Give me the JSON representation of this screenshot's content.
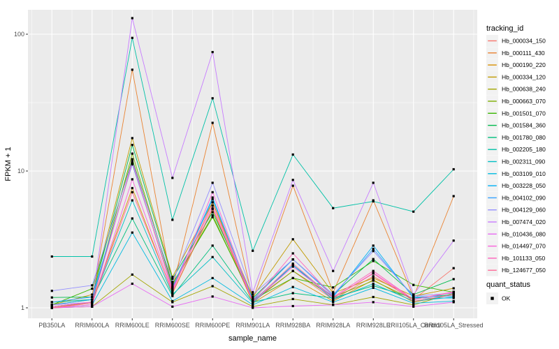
{
  "chart_data": {
    "type": "line",
    "title": "",
    "xlabel": "sample_name",
    "ylabel": "FPKM + 1",
    "y_scale": "log10",
    "y_tick_labels": [
      "1",
      "10",
      "100"
    ],
    "y_tick_values": [
      1,
      10,
      100
    ],
    "grid": "on",
    "legend_position": "right",
    "legend_color_title": "tracking_id",
    "legend_shape_title": "quant_status",
    "legend_shape_label": "OK",
    "categories": [
      "PB350LA",
      "RRIM600LA",
      "RRIM600LE",
      "RRIM600SE",
      "RRIM600PE",
      "RRIM901LA",
      "RRIM928BA",
      "RRIM928LA",
      "RRIM928LE",
      "RRII105LA_Control",
      "RRII105LA_Stressed"
    ],
    "series": [
      {
        "name": "Hb_000034_150",
        "color": "#F8766D",
        "values": [
          1.0,
          1.1,
          11.6,
          1.35,
          5.9,
          1.1,
          1.86,
          1.15,
          1.7,
          1.15,
          1.95
        ]
      },
      {
        "name": "Hb_000111_430",
        "color": "#EA8331",
        "values": [
          1.05,
          1.15,
          55.0,
          1.39,
          22.5,
          1.15,
          7.8,
          1.3,
          6.1,
          1.2,
          6.55
        ]
      },
      {
        "name": "Hb_000190_220",
        "color": "#D89000",
        "values": [
          1.0,
          1.1,
          7.5,
          1.28,
          5.25,
          1.08,
          1.65,
          1.12,
          1.6,
          1.1,
          1.25
        ]
      },
      {
        "name": "Hb_000334_120",
        "color": "#C09B00",
        "values": [
          1.05,
          1.25,
          17.4,
          1.68,
          5.9,
          1.2,
          3.17,
          1.28,
          1.65,
          1.22,
          1.39
        ]
      },
      {
        "name": "Hb_000638_240",
        "color": "#A3A500",
        "values": [
          1.0,
          1.02,
          1.75,
          1.1,
          1.44,
          1.02,
          1.16,
          1.05,
          1.2,
          1.05,
          1.28
        ]
      },
      {
        "name": "Hb_000663_070",
        "color": "#7CAE00",
        "values": [
          1.02,
          1.1,
          13.4,
          1.45,
          4.75,
          1.12,
          1.86,
          1.2,
          1.58,
          1.15,
          1.3
        ]
      },
      {
        "name": "Hb_001501_070",
        "color": "#39B600",
        "values": [
          1.05,
          1.38,
          12.2,
          1.5,
          4.6,
          1.15,
          1.65,
          1.41,
          2.2,
          1.47,
          1.3
        ]
      },
      {
        "name": "Hb_001584_360",
        "color": "#00BB4E",
        "values": [
          1.19,
          1.2,
          15.5,
          1.63,
          5.0,
          1.18,
          2.26,
          1.25,
          2.27,
          1.25,
          1.62
        ]
      },
      {
        "name": "Hb_001780_080",
        "color": "#00BF7D",
        "values": [
          1.1,
          1.15,
          4.5,
          1.22,
          2.85,
          1.1,
          1.28,
          1.18,
          1.45,
          1.18,
          1.25
        ]
      },
      {
        "name": "Hb_002205_180",
        "color": "#00C1A7",
        "values": [
          2.37,
          2.37,
          94.0,
          4.4,
          34.0,
          2.61,
          13.2,
          5.35,
          6.0,
          5.05,
          10.3
        ]
      },
      {
        "name": "Hb_002311_090",
        "color": "#00BFC4",
        "values": [
          1.02,
          1.1,
          6.1,
          1.25,
          2.35,
          1.08,
          2.05,
          1.15,
          1.5,
          1.12,
          1.2
        ]
      },
      {
        "name": "Hb_003109_010",
        "color": "#00BAE0",
        "values": [
          1.0,
          1.05,
          3.55,
          1.12,
          1.65,
          1.05,
          1.42,
          1.1,
          1.4,
          1.08,
          1.12
        ]
      },
      {
        "name": "Hb_003228_050",
        "color": "#00B0F6",
        "values": [
          1.05,
          1.15,
          11.4,
          1.4,
          6.4,
          1.12,
          2.05,
          1.2,
          2.85,
          1.18,
          1.18
        ]
      },
      {
        "name": "Hb_004102_090",
        "color": "#35A2FF",
        "values": [
          1.1,
          1.2,
          11.2,
          1.42,
          6.2,
          1.15,
          2.26,
          1.22,
          2.7,
          1.2,
          1.22
        ]
      },
      {
        "name": "Hb_004129_060",
        "color": "#9590FF",
        "values": [
          1.33,
          1.46,
          11.8,
          1.55,
          8.2,
          1.25,
          2.26,
          1.25,
          2.6,
          1.22,
          1.28
        ]
      },
      {
        "name": "Hb_007474_020",
        "color": "#C77CFF",
        "values": [
          1.05,
          1.1,
          131.0,
          8.9,
          74.0,
          1.3,
          8.6,
          1.86,
          8.2,
          1.25,
          3.1
        ]
      },
      {
        "name": "Hb_010436_080",
        "color": "#E76BF3",
        "values": [
          1.0,
          1.02,
          1.5,
          1.02,
          1.21,
          1.0,
          1.03,
          1.05,
          1.1,
          1.02,
          1.1
        ]
      },
      {
        "name": "Hb_014497_070",
        "color": "#FA62DB",
        "values": [
          1.0,
          1.05,
          8.7,
          1.32,
          7.0,
          1.1,
          2.0,
          1.18,
          1.8,
          1.15,
          1.3
        ]
      },
      {
        "name": "Hb_101133_050",
        "color": "#FF62BC",
        "values": [
          1.02,
          1.1,
          11.5,
          1.38,
          5.6,
          1.12,
          2.5,
          1.2,
          1.86,
          1.15,
          1.31
        ]
      },
      {
        "name": "Hb_124677_050",
        "color": "#FF6A98",
        "values": [
          1.0,
          1.08,
          7.0,
          1.3,
          5.35,
          1.1,
          2.1,
          1.18,
          1.78,
          1.12,
          1.25
        ]
      }
    ],
    "colors": {
      "panel_background": "#EBEBEB",
      "gridline": "#FFFFFF",
      "marker": "#000000",
      "tick_text": "#4D4D4D",
      "title_text": "#000000",
      "legend_key_background": "#F2F2F2",
      "page_background": "#FFFFFF"
    }
  }
}
